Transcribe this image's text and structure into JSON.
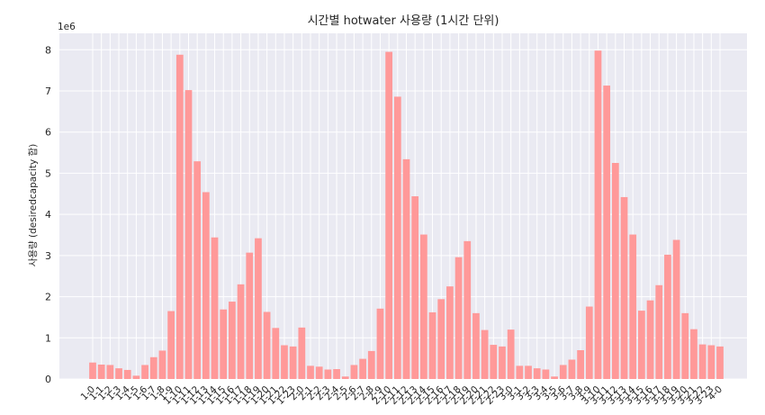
{
  "chart_data": {
    "type": "bar",
    "title": "시간별 hotwater 사용량 (1시간 단위)",
    "xlabel": "",
    "ylabel": "사용량 (desiredcapacity 합)",
    "y_offset_label": "1e6",
    "ylim": [
      0,
      8.4
    ],
    "y_ticks": [
      0,
      1,
      2,
      3,
      4,
      5,
      6,
      7,
      8
    ],
    "y_unit_multiplier": 1000000,
    "grid": true,
    "bar_color": "#FF9999",
    "plot_background": "#EAEAF2",
    "categories": [
      "1-0",
      "1-1",
      "1-2",
      "1-3",
      "1-4",
      "1-5",
      "1-6",
      "1-7",
      "1-8",
      "1-9",
      "1-10",
      "1-11",
      "1-12",
      "1-13",
      "1-14",
      "1-15",
      "1-16",
      "1-17",
      "1-18",
      "1-19",
      "1-20",
      "1-21",
      "1-22",
      "1-23",
      "2-0",
      "2-1",
      "2-2",
      "2-3",
      "2-4",
      "2-5",
      "2-6",
      "2-7",
      "2-8",
      "2-9",
      "2-10",
      "2-11",
      "2-12",
      "2-13",
      "2-14",
      "2-15",
      "2-16",
      "2-17",
      "2-18",
      "2-19",
      "2-20",
      "2-21",
      "2-22",
      "2-23",
      "3-0",
      "3-1",
      "3-2",
      "3-3",
      "3-4",
      "3-5",
      "3-6",
      "3-7",
      "3-8",
      "3-9",
      "3-10",
      "3-11",
      "3-12",
      "3-13",
      "3-14",
      "3-15",
      "3-16",
      "3-17",
      "3-18",
      "3-19",
      "3-20",
      "3-21",
      "3-22",
      "3-23",
      "4-0"
    ],
    "values": [
      0.4,
      0.35,
      0.34,
      0.26,
      0.22,
      0.08,
      0.34,
      0.53,
      0.69,
      1.65,
      7.88,
      7.02,
      5.29,
      4.54,
      3.44,
      1.69,
      1.88,
      2.3,
      3.07,
      3.42,
      1.63,
      1.24,
      0.82,
      0.79,
      1.25,
      0.32,
      0.3,
      0.23,
      0.24,
      0.06,
      0.34,
      0.49,
      0.68,
      1.71,
      7.95,
      6.86,
      5.34,
      4.44,
      3.51,
      1.62,
      1.94,
      2.25,
      2.96,
      3.35,
      1.6,
      1.19,
      0.83,
      0.79,
      1.2,
      0.32,
      0.32,
      0.26,
      0.23,
      0.06,
      0.34,
      0.47,
      0.7,
      1.76,
      7.98,
      7.13,
      5.25,
      4.42,
      3.51,
      1.66,
      1.91,
      2.28,
      3.02,
      3.38,
      1.6,
      1.21,
      0.84,
      0.82,
      0.79
    ]
  }
}
